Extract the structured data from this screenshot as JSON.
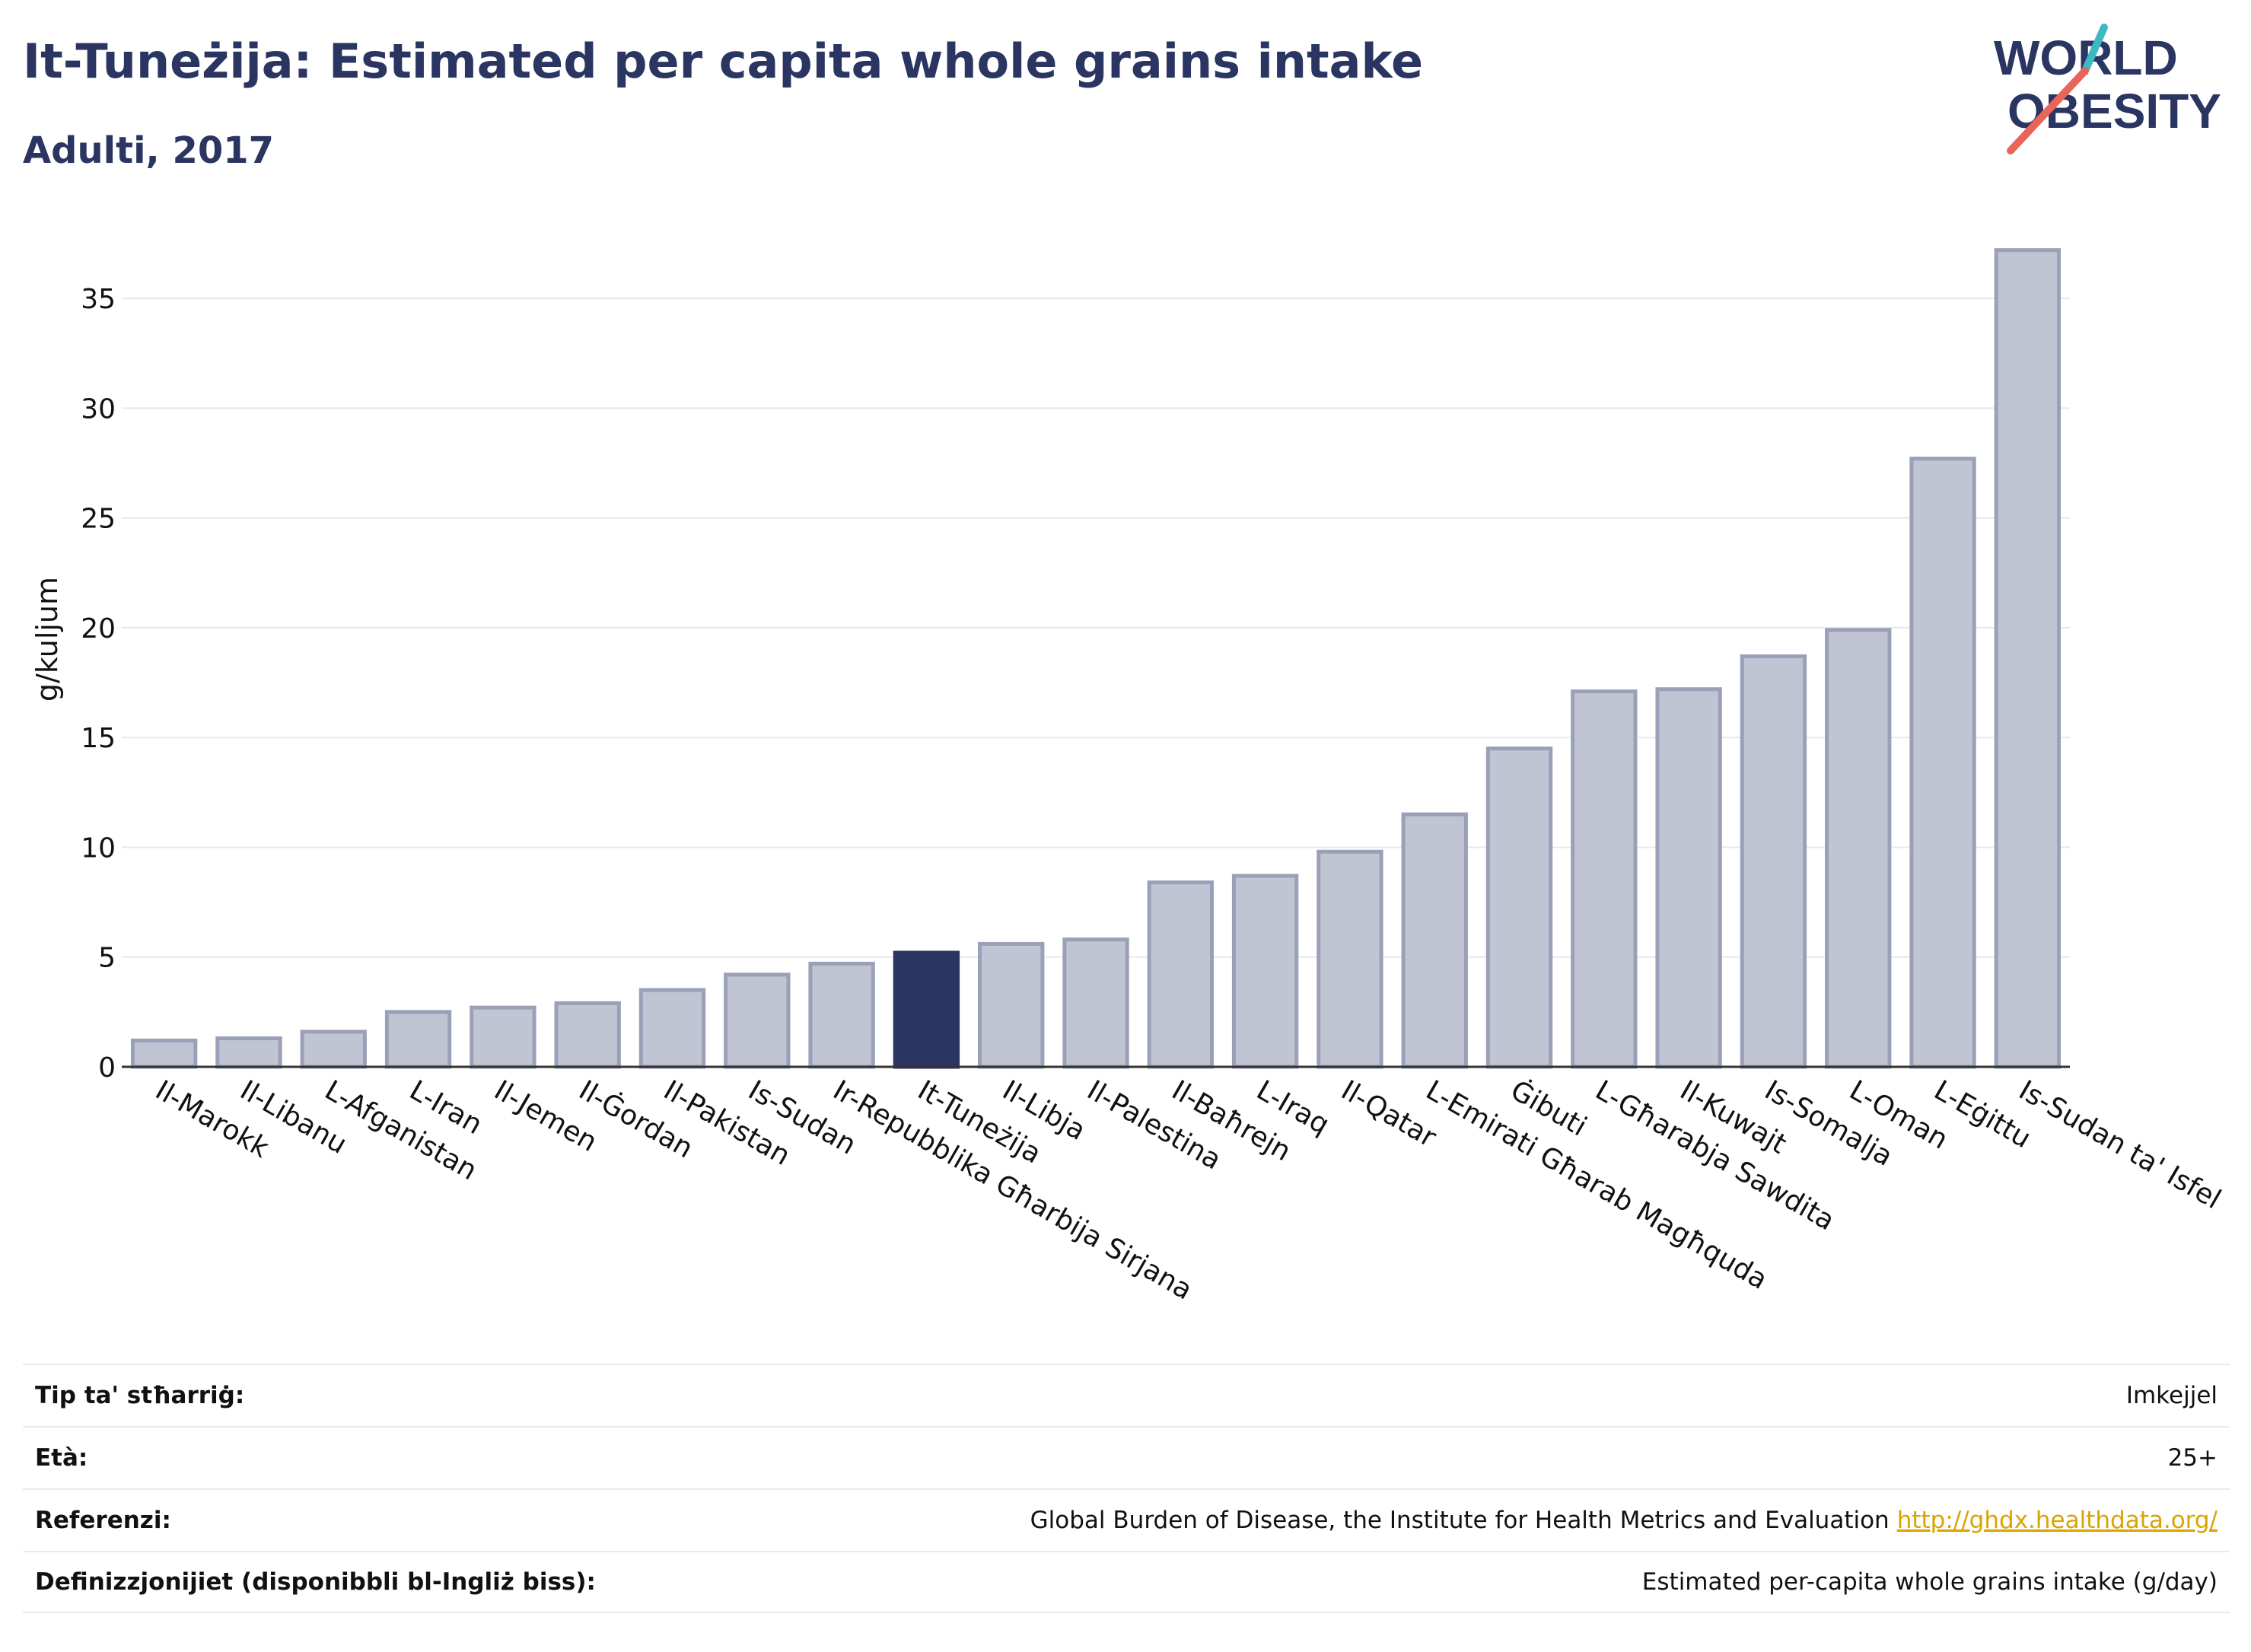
{
  "header": {
    "title": "It-Tuneżija: Estimated per capita whole grains intake",
    "subtitle": "Adulti, 2017"
  },
  "logo": {
    "line1": "WORLD",
    "line2": "OBESITY",
    "accent_colors": [
      "#e8655a",
      "#3fb8c4"
    ]
  },
  "colors": {
    "bar": "#c0c4d3",
    "bar_stroke": "#9aa0b8",
    "highlight": "#2a3561",
    "text": "#2a3561",
    "link": "#d9a400"
  },
  "chart_data": {
    "type": "bar",
    "title": "It-Tuneżija: Estimated per capita whole grains intake",
    "subtitle": "Adulti, 2017",
    "ylabel": "g/kuljum",
    "xlabel": "",
    "ylim": [
      0,
      37.5
    ],
    "yticks": [
      0,
      5,
      10,
      15,
      20,
      25,
      30,
      35
    ],
    "grid": true,
    "highlight": "It-Tuneżija",
    "categories": [
      "Il-Marokk",
      "Il-Libanu",
      "L-Afganistan",
      "L-Iran",
      "Il-Jemen",
      "Il-Ġordan",
      "Il-Pakistan",
      "Is-Sudan",
      "Ir-Repubblika Għarbija Sirjana",
      "It-Tuneżija",
      "Il-Libja",
      "Il-Palestina",
      "Il-Baħrejn",
      "L-Iraq",
      "Il-Qatar",
      "L-Emirati Għarab Magħquda",
      "Ġibuti",
      "L-Għarabja Sawdita",
      "Il-Kuwajt",
      "Is-Somalja",
      "L-Oman",
      "L-Eġittu",
      "Is-Sudan ta' Isfel"
    ],
    "values": [
      1.2,
      1.3,
      1.6,
      2.5,
      2.7,
      2.9,
      3.5,
      4.2,
      4.7,
      5.2,
      5.6,
      5.8,
      8.4,
      8.7,
      9.8,
      11.5,
      14.5,
      17.1,
      17.2,
      18.7,
      19.9,
      27.7,
      37.2
    ]
  },
  "info": {
    "rows": [
      {
        "label": "Tip ta' stħarriġ:",
        "value": "Imkejjel",
        "link": ""
      },
      {
        "label": "Età:",
        "value": "25+",
        "link": ""
      },
      {
        "label": "Referenzi:",
        "value": "Global Burden of Disease, the Institute for Health Metrics and Evaluation",
        "link": "http://ghdx.healthdata.org/"
      },
      {
        "label": "Definizzjonijiet (disponibbli bl-Ingliż biss):",
        "value": "Estimated per-capita whole grains intake (g/day)",
        "link": ""
      }
    ]
  }
}
